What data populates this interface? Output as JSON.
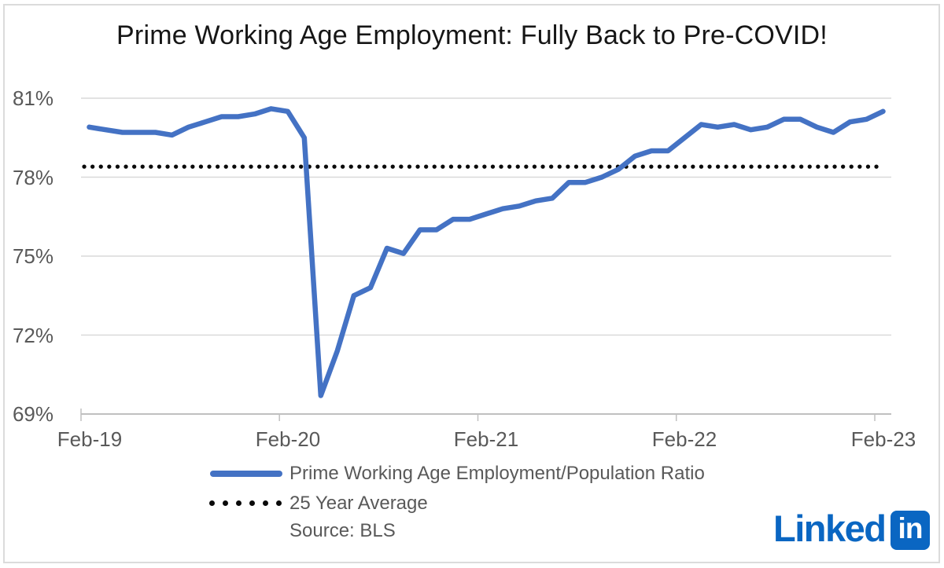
{
  "title": "Prime Working Age Employment: Fully Back to Pre-COVID!",
  "chart_data": {
    "type": "line",
    "title": "Prime Working Age Employment: Fully Back to Pre-COVID!",
    "xlabel": "",
    "ylabel": "",
    "ylim": [
      69,
      81
    ],
    "grid": "horizontal",
    "legend_position": "bottom-left",
    "y_ticks": [
      {
        "label": "81%",
        "value": 81
      },
      {
        "label": "78%",
        "value": 78
      },
      {
        "label": "75%",
        "value": 75
      },
      {
        "label": "72%",
        "value": 72
      },
      {
        "label": "69%",
        "value": 69
      }
    ],
    "x_tick_labels": [
      "Feb-19",
      "Feb-20",
      "Feb-21",
      "Feb-22",
      "Feb-23"
    ],
    "x": [
      "Feb-19",
      "Mar-19",
      "Apr-19",
      "May-19",
      "Jun-19",
      "Jul-19",
      "Aug-19",
      "Sep-19",
      "Oct-19",
      "Nov-19",
      "Dec-19",
      "Jan-20",
      "Feb-20",
      "Mar-20",
      "Apr-20",
      "May-20",
      "Jun-20",
      "Jul-20",
      "Aug-20",
      "Sep-20",
      "Oct-20",
      "Nov-20",
      "Dec-20",
      "Jan-21",
      "Feb-21",
      "Mar-21",
      "Apr-21",
      "May-21",
      "Jun-21",
      "Jul-21",
      "Aug-21",
      "Sep-21",
      "Oct-21",
      "Nov-21",
      "Dec-21",
      "Jan-22",
      "Feb-22",
      "Mar-22",
      "Apr-22",
      "May-22",
      "Jun-22",
      "Jul-22",
      "Aug-22",
      "Sep-22",
      "Oct-22",
      "Nov-22",
      "Dec-22",
      "Jan-23",
      "Feb-23"
    ],
    "series": [
      {
        "name": "Prime Working Age Employment/Population Ratio",
        "type": "line",
        "color": "#4472C4",
        "values": [
          79.9,
          79.8,
          79.7,
          79.7,
          79.7,
          79.6,
          79.9,
          80.1,
          80.3,
          80.3,
          80.4,
          80.6,
          80.5,
          79.5,
          69.7,
          71.4,
          73.5,
          73.8,
          75.3,
          75.1,
          76.0,
          76.0,
          76.4,
          76.4,
          76.6,
          76.8,
          76.9,
          77.1,
          77.2,
          77.8,
          77.8,
          78.0,
          78.3,
          78.8,
          79.0,
          79.0,
          79.5,
          80.0,
          79.9,
          80.0,
          79.8,
          79.9,
          80.2,
          80.2,
          79.9,
          79.7,
          80.1,
          80.2,
          80.5
        ]
      },
      {
        "name": "25 Year Average",
        "type": "dotted-horizontal-line",
        "color": "#0a0a0a",
        "value": 78.4
      }
    ],
    "source_note": "Source: BLS"
  },
  "legend": {
    "series_label": "Prime Working Age Employment/Population Ratio",
    "average_label": "25 Year Average",
    "source_label": "Source: BLS"
  },
  "branding": {
    "name": "LinkedIn",
    "wordmark": "Linked",
    "bug": "in",
    "color": "#0A66C2"
  },
  "colors": {
    "series_blue": "#4472C4",
    "dotted_black": "#0a0a0a",
    "gridline": "#D9D9D9",
    "axis": "#C0C0C0",
    "label_gray": "#595959",
    "linkedin_blue": "#0A66C2"
  }
}
